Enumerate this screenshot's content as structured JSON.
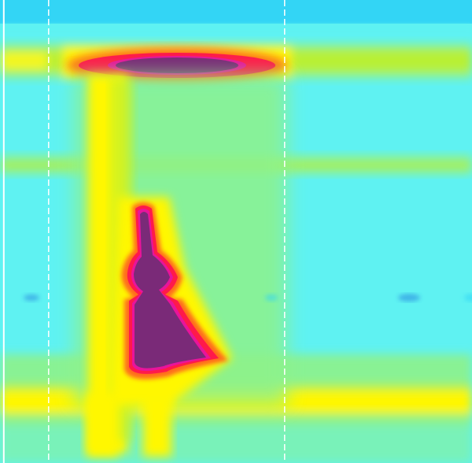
{
  "chart_data": {
    "type": "heatmap",
    "title": "",
    "xlabel": "",
    "ylabel": "",
    "x_range": [
      0,
      1
    ],
    "y_range": [
      0,
      1
    ],
    "colormap": {
      "name": "jet-like",
      "stops": [
        "#2a8be0",
        "#33d5f5",
        "#5ff2f2",
        "#8ef28a",
        "#b8f034",
        "#f4f722",
        "#fff700",
        "#ff6a1f",
        "#ff1a4a",
        "#e8149b",
        "#7a2a78"
      ]
    },
    "background_color": "#5ff2f2",
    "vertical_markers": [
      {
        "style": "solid",
        "color": "#ffffff",
        "value": 0.008
      },
      {
        "style": "dashed",
        "color": "#ffffff",
        "value": 0.103
      },
      {
        "style": "dashed",
        "color": "#ffffff",
        "value": 0.603
      }
    ],
    "features": [
      {
        "name": "top-band",
        "peak_level": 0.55
      },
      {
        "name": "upper-hotspot",
        "peak_level": 1.0
      },
      {
        "name": "mid-band",
        "peak_level": 0.45
      },
      {
        "name": "lower-band",
        "peak_level": 0.6
      },
      {
        "name": "column-plume",
        "peak_level": 0.75
      },
      {
        "name": "lower-hotspot",
        "peak_level": 1.0
      }
    ]
  }
}
